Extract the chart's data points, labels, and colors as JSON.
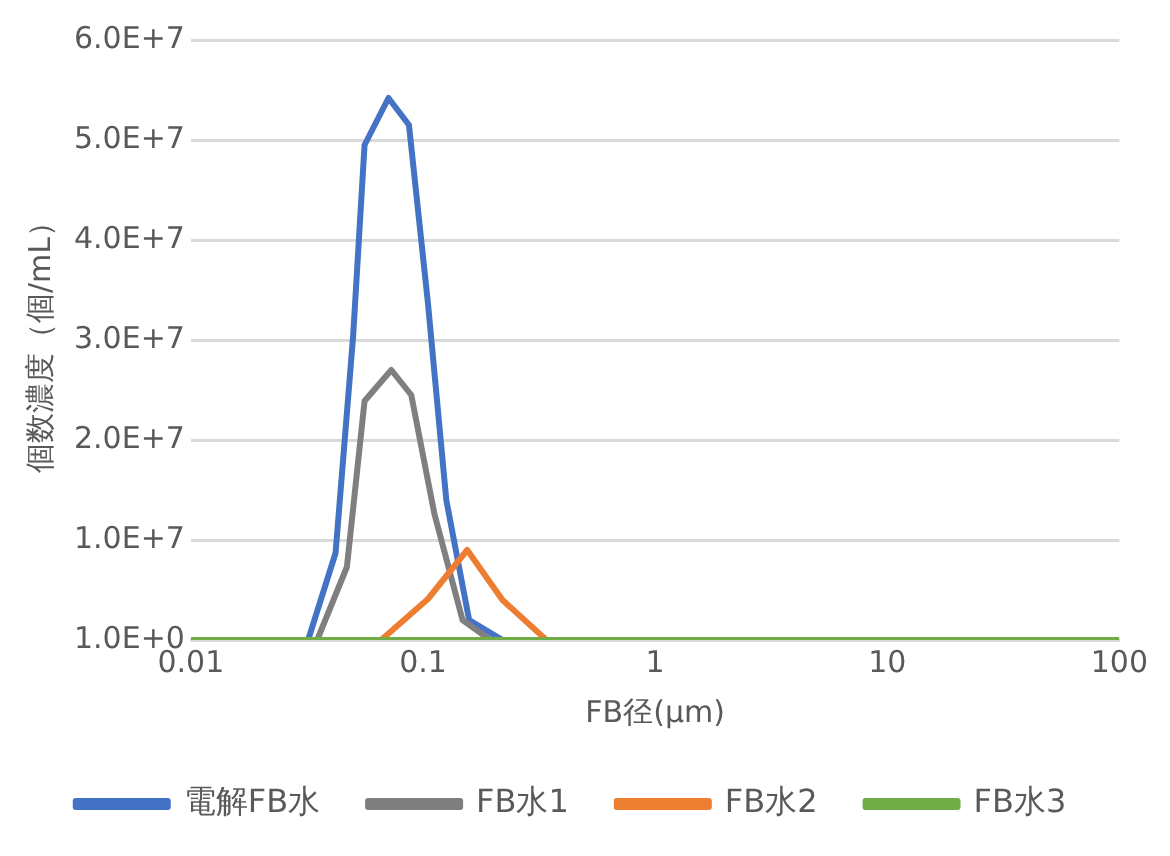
{
  "chart_data": {
    "type": "line",
    "xlabel": "FB径(μm)",
    "ylabel": "個数濃度（個/mL）",
    "log": "x",
    "grid": "y",
    "legend": "bottom",
    "marker": "none",
    "line_style": "solid",
    "xlim": [
      0.01,
      100
    ],
    "xticks": [
      0.01,
      0.1,
      1,
      10,
      100
    ],
    "ylim": [
      1,
      60000000
    ],
    "yticks": [
      {
        "value": 1,
        "label": "1.0E+0"
      },
      {
        "value": 10000000,
        "label": "1.0E+7"
      },
      {
        "value": 20000000,
        "label": "2.0E+7"
      },
      {
        "value": 30000000,
        "label": "3.0E+7"
      },
      {
        "value": 40000000,
        "label": "4.0E+7"
      },
      {
        "value": 50000000,
        "label": "5.0E+7"
      },
      {
        "value": 60000000,
        "label": "6.0E+7"
      }
    ],
    "series": [
      {
        "name": "電解FB水",
        "color": "#4472c4",
        "x": [
          0.032,
          0.042,
          0.05,
          0.056,
          0.071,
          0.087,
          0.105,
          0.126,
          0.158,
          0.22
        ],
        "values": [
          1,
          8700000,
          30400000,
          49500000,
          54200000,
          51500000,
          33700000,
          14000000,
          2000000,
          1
        ]
      },
      {
        "name": "FB水1",
        "color": "#7f7f7f",
        "x": [
          0.035,
          0.047,
          0.056,
          0.073,
          0.089,
          0.112,
          0.148,
          0.195
        ],
        "values": [
          1,
          7300000,
          23900000,
          27000000,
          24500000,
          12600000,
          2000000,
          1
        ]
      },
      {
        "name": "FB水2",
        "color": "#ed7d31",
        "x": [
          0.066,
          0.105,
          0.155,
          0.22,
          0.34
        ],
        "values": [
          1,
          4100000,
          9000000,
          4000000,
          1
        ]
      },
      {
        "name": "FB水3",
        "color": "#70ad47",
        "x": [
          0.01,
          0.1,
          1,
          10,
          100
        ],
        "values": [
          1,
          1,
          1,
          1,
          1
        ]
      }
    ]
  }
}
